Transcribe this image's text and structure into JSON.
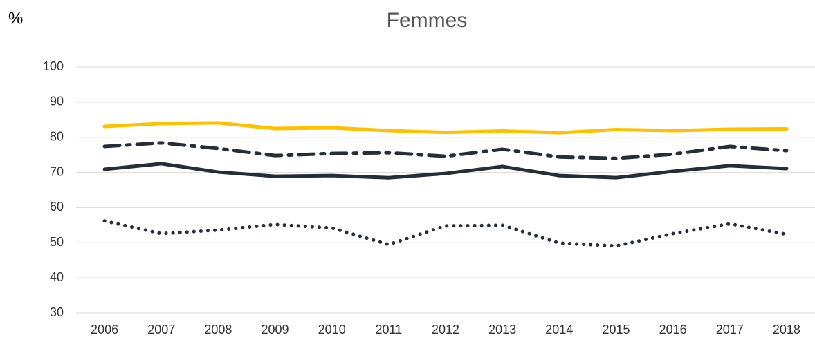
{
  "chart_data": {
    "type": "line",
    "title": "Femmes",
    "y_label": "%",
    "categories": [
      "2006",
      "2007",
      "2008",
      "2009",
      "2010",
      "2011",
      "2012",
      "2013",
      "2014",
      "2015",
      "2016",
      "2017",
      "2018"
    ],
    "series": [
      {
        "color": "#ffc000",
        "dash": "solid",
        "values": [
          83.1,
          83.9,
          84.1,
          82.5,
          82.7,
          81.9,
          81.4,
          81.8,
          81.3,
          82.2,
          81.9,
          82.3,
          82.4
        ]
      },
      {
        "color": "#262d37",
        "dash": "dashdot",
        "values": [
          77.4,
          78.4,
          76.8,
          74.8,
          75.4,
          75.6,
          74.6,
          76.6,
          74.4,
          74.0,
          75.2,
          77.4,
          76.2
        ]
      },
      {
        "color": "#262d37",
        "dash": "solid",
        "values": [
          70.9,
          72.5,
          70.1,
          68.9,
          69.1,
          68.5,
          69.7,
          71.7,
          69.1,
          68.5,
          70.3,
          71.9,
          71.1
        ]
      },
      {
        "color": "#262d37",
        "dash": "dotted",
        "values": [
          56.2,
          52.6,
          53.6,
          55.2,
          54.2,
          49.5,
          54.8,
          55.0,
          49.9,
          49.1,
          52.6,
          55.4,
          52.4
        ]
      }
    ],
    "ylim": [
      30,
      100
    ],
    "yticks": [
      30,
      40,
      50,
      60,
      70,
      80,
      90,
      100
    ],
    "grid": true
  }
}
